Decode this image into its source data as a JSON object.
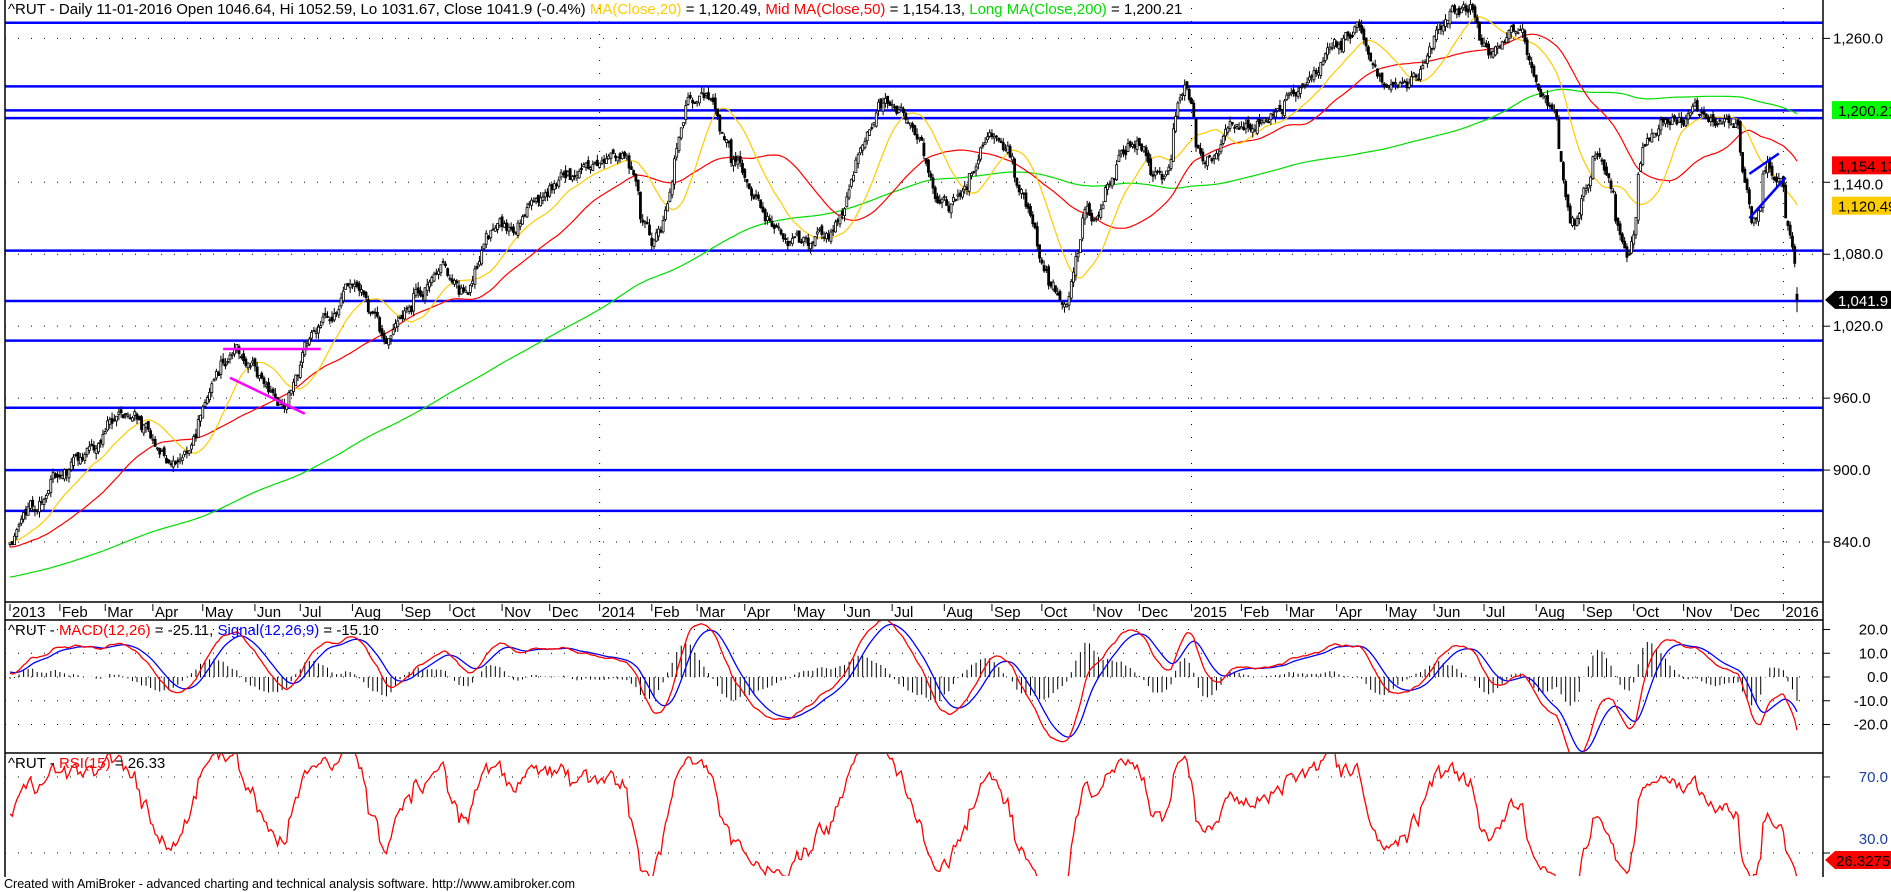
{
  "header": {
    "main": "^RUT - Daily 11-01-2016 Open 1046.64, Hi 1052.59, Lo 1031.67, Close 1041.9 (-0.4%) ",
    "ma20_label": "MA(Close,20)",
    "ma20_value": " = 1,120.49, ",
    "ma50_label": "Mid MA(Close,50)",
    "ma50_value": " = 1,154.13, ",
    "ma200_label": "Long MA(Close,200)",
    "ma200_value": " = 1,200.21"
  },
  "macd_title": {
    "prefix": "^RUT - ",
    "macd_label": "MACD(12,26)",
    "macd_value": " = -25.11, ",
    "signal_label": "Signal(12,26,9)",
    "signal_value": " = -15.10"
  },
  "rsi_title": {
    "prefix": "^RUT - ",
    "rsi_label": "RSI(15)",
    "rsi_value": " = 26.33"
  },
  "footer": "Created with AmiBroker - advanced charting and technical analysis software. http://www.amibroker.com",
  "colors": {
    "ma20": "#ffcc00",
    "ma50": "#ff0000",
    "ma200": "#00dd00",
    "support_lines": "#0000ff",
    "pattern_lines_2013": "#ff00ff",
    "wedge_lines_2015": "#0000ff",
    "macd": "#ff0000",
    "signal": "#0000ff",
    "histogram": "#000000",
    "rsi": "#ff0000"
  },
  "chart_data": [
    {
      "type": "candlestick",
      "symbol": "^RUT",
      "interval": "Daily",
      "last_bar": {
        "date": "11-01-2016",
        "open": 1046.64,
        "high": 1052.59,
        "low": 1031.67,
        "close": 1041.9,
        "change_pct": -0.4
      },
      "ylim": [
        790,
        1292
      ],
      "y_ticks": [
        {
          "value": 1260,
          "label": "1,260.0"
        },
        {
          "value": 1140,
          "label": "1,140.0"
        },
        {
          "value": 1080,
          "label": "1,080.0"
        },
        {
          "value": 1020,
          "label": "1,020.0"
        },
        {
          "value": 960,
          "label": "960.0"
        },
        {
          "value": 900,
          "label": "900.0"
        },
        {
          "value": 840,
          "label": "840.0"
        }
      ],
      "value_tags": [
        {
          "value": 1200.21,
          "label": "1,200.21",
          "bg": "#00ff00",
          "fg": "#000000",
          "arrow": false
        },
        {
          "value": 1154.13,
          "label": "1,154.13",
          "bg": "#ff0000",
          "fg": "#000000",
          "arrow": false
        },
        {
          "value": 1120.49,
          "label": "1,120.49",
          "bg": "#ffcc00",
          "fg": "#000000",
          "arrow": false
        },
        {
          "value": 1041.9,
          "label": "1,041.9",
          "bg": "#000000",
          "fg": "#ffffff",
          "arrow": true
        }
      ],
      "x_ticks": [
        "2013",
        "Feb",
        "Mar",
        "Apr",
        "May",
        "Jun",
        "Jul",
        "Aug",
        "Sep",
        "Oct",
        "Nov",
        "Dec",
        "2014",
        "Feb",
        "Mar",
        "Apr",
        "May",
        "Jun",
        "Jul",
        "Aug",
        "Sep",
        "Oct",
        "Nov",
        "Dec",
        "2015",
        "Feb",
        "Mar",
        "Apr",
        "May",
        "Jun",
        "Jul",
        "Aug",
        "Sep",
        "Oct",
        "Nov",
        "Dec",
        "2016"
      ],
      "close_path": [
        [
          "2013-01-02",
          845
        ],
        [
          "2013-02-08",
          905
        ],
        [
          "2013-03-15",
          950
        ],
        [
          "2013-04-15",
          905
        ],
        [
          "2013-05-21",
          995
        ],
        [
          "2013-06-20",
          955
        ],
        [
          "2013-07-08",
          1010
        ],
        [
          "2013-08-02",
          1060
        ],
        [
          "2013-08-27",
          1015
        ],
        [
          "2013-09-24",
          1075
        ],
        [
          "2013-10-08",
          1045
        ],
        [
          "2013-10-25",
          1100
        ],
        [
          "2013-12-24",
          1145
        ],
        [
          "2014-01-17",
          1160
        ],
        [
          "2014-02-03",
          1090
        ],
        [
          "2014-03-04",
          1210
        ],
        [
          "2014-04-14",
          1110
        ],
        [
          "2014-05-16",
          1090
        ],
        [
          "2014-07-01",
          1205
        ],
        [
          "2014-08-06",
          1120
        ],
        [
          "2014-09-02",
          1175
        ],
        [
          "2014-10-14",
          1045
        ],
        [
          "2014-10-29",
          1110
        ],
        [
          "2014-11-26",
          1175
        ],
        [
          "2014-12-16",
          1140
        ],
        [
          "2014-12-29",
          1215
        ],
        [
          "2015-01-09",
          1165
        ],
        [
          "2015-02-16",
          1200
        ],
        [
          "2015-03-10",
          1230
        ],
        [
          "2015-04-16",
          1265
        ],
        [
          "2015-05-05",
          1215
        ],
        [
          "2015-06-23",
          1290
        ],
        [
          "2015-07-07",
          1250
        ],
        [
          "2015-07-17",
          1265
        ],
        [
          "2015-08-13",
          1200
        ],
        [
          "2015-08-24",
          1100
        ],
        [
          "2015-09-11",
          1170
        ],
        [
          "2015-09-28",
          1085
        ],
        [
          "2015-10-09",
          1170
        ],
        [
          "2015-11-04",
          1200
        ],
        [
          "2015-12-01",
          1200
        ],
        [
          "2015-12-14",
          1110
        ],
        [
          "2015-12-23",
          1155
        ],
        [
          "2015-12-30",
          1140
        ],
        [
          "2016-01-05",
          1100
        ],
        [
          "2016-01-11",
          1041.9
        ]
      ],
      "moving_averages": [
        {
          "label": "MA(Close,20)",
          "period": 20,
          "last": 1120.49
        },
        {
          "label": "Mid MA(Close,50)",
          "period": 50,
          "last": 1154.13
        },
        {
          "label": "Long MA(Close,200)",
          "period": 200,
          "last": 1200.21
        }
      ],
      "horizontal_lines": [
        1273,
        1220,
        1200,
        1193.5,
        1083,
        1041,
        1008,
        952,
        900,
        866
      ],
      "trend_lines": [
        {
          "color": "magenta",
          "from": [
            "2013-05-14",
            1001
          ],
          "to": [
            "2013-07-12",
            1001
          ]
        },
        {
          "color": "magenta",
          "from": [
            "2013-05-17",
            977
          ],
          "to": [
            "2013-07-03",
            947
          ]
        },
        {
          "color": "blue",
          "from": [
            "2015-12-11",
            1147
          ],
          "to": [
            "2015-12-30",
            1164
          ]
        },
        {
          "color": "blue",
          "from": [
            "2015-12-11",
            1110
          ],
          "to": [
            "2016-01-04",
            1144
          ]
        }
      ]
    },
    {
      "type": "line",
      "ylim": [
        -32,
        24
      ],
      "y_ticks": [
        {
          "value": 20,
          "label": "20.0"
        },
        {
          "value": 10,
          "label": "10.0"
        },
        {
          "value": 0,
          "label": "0.0"
        },
        {
          "value": -10,
          "label": "-10.0"
        },
        {
          "value": -20,
          "label": "-20.0"
        }
      ],
      "series": [
        {
          "name": "MACD(12,26)",
          "last": -25.11
        },
        {
          "name": "Signal(12,26,9)",
          "last": -15.1
        }
      ]
    },
    {
      "type": "line",
      "ylim": [
        17.4,
        82.6
      ],
      "y_ticks": [
        {
          "value": 70,
          "label": "70.0"
        },
        {
          "value": 30,
          "label": "30.0"
        }
      ],
      "series": [
        {
          "name": "RSI(15)",
          "last": 26.33
        }
      ],
      "value_tag": {
        "value": 26.3275,
        "label": "26.3275"
      }
    }
  ]
}
